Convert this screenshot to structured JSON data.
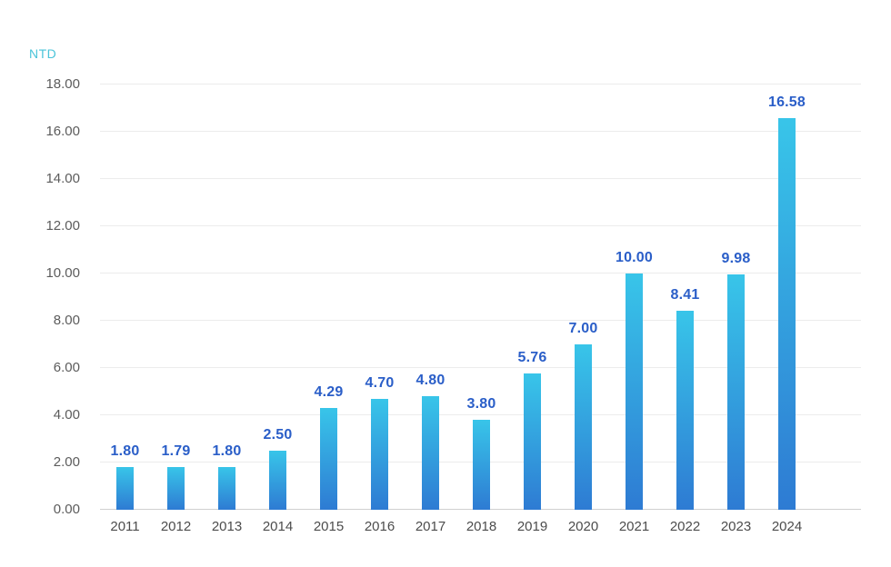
{
  "chart_data": {
    "type": "bar",
    "title": "",
    "unit_label": "NTD",
    "xlabel": "",
    "ylabel": "NTD",
    "categories": [
      "2011",
      "2012",
      "2013",
      "2014",
      "2015",
      "2016",
      "2017",
      "2018",
      "2019",
      "2020",
      "2021",
      "2022",
      "2023",
      "2024"
    ],
    "values": [
      1.8,
      1.79,
      1.8,
      2.5,
      4.29,
      4.7,
      4.8,
      3.8,
      5.76,
      7.0,
      10.0,
      8.41,
      9.98,
      16.58
    ],
    "value_labels": [
      "1.80",
      "1.79",
      "1.80",
      "2.50",
      "4.29",
      "4.70",
      "4.80",
      "3.80",
      "5.76",
      "7.00",
      "10.00",
      "8.41",
      "9.98",
      "16.58"
    ],
    "ylim": [
      0,
      18
    ],
    "y_tick_step": 2,
    "y_ticks": [
      "0.00",
      "2.00",
      "4.00",
      "6.00",
      "8.00",
      "10.00",
      "12.00",
      "14.00",
      "16.00",
      "18.00"
    ],
    "grid": true,
    "legend_position": "none",
    "colors": {
      "background": "#ffffff",
      "bar_gradient_top": "#38C5E9",
      "bar_gradient_bottom": "#2E7BD3",
      "value_label": "#2A5EC8",
      "y_tick_label": "#5C5C5C",
      "x_tick_label": "#4C4C4C",
      "unit_label": "#4AC4D9",
      "gridline": "#ECECEC",
      "axis_line": "#D0D0D0"
    }
  }
}
